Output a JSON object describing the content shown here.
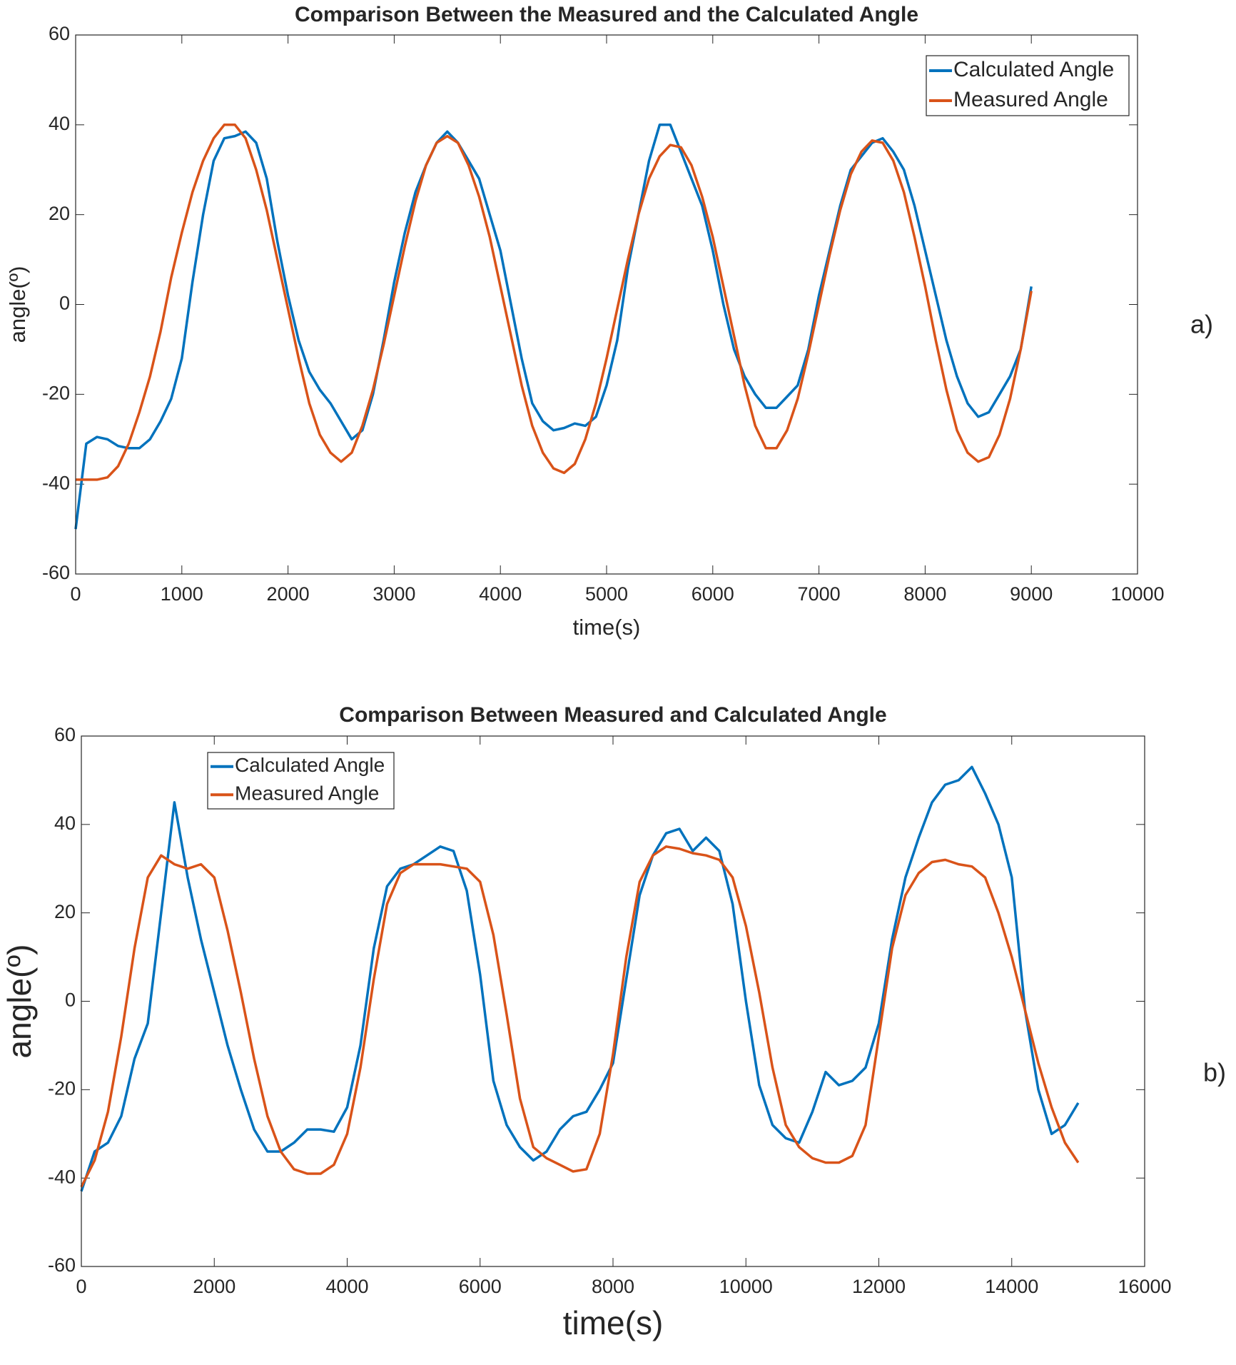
{
  "chart_data": [
    {
      "type": "line",
      "title": "Comparison Between the Measured and the Calculated Angle",
      "x_label": "time(s)",
      "y_label": "angle(º)",
      "annotation": "a)",
      "x": [
        0,
        100,
        200,
        300,
        400,
        500,
        600,
        700,
        800,
        900,
        1000,
        1100,
        1200,
        1300,
        1400,
        1500,
        1600,
        1700,
        1800,
        1900,
        2000,
        2100,
        2200,
        2300,
        2400,
        2500,
        2600,
        2700,
        2800,
        2900,
        3000,
        3100,
        3200,
        3300,
        3400,
        3500,
        3600,
        3700,
        3800,
        3900,
        4000,
        4100,
        4200,
        4300,
        4400,
        4500,
        4600,
        4700,
        4800,
        4900,
        5000,
        5100,
        5200,
        5300,
        5400,
        5500,
        5600,
        5700,
        5800,
        5900,
        6000,
        6100,
        6200,
        6300,
        6400,
        6500,
        6600,
        6700,
        6800,
        6900,
        7000,
        7100,
        7200,
        7300,
        7400,
        7500,
        7600,
        7700,
        7800,
        7900,
        8000,
        8100,
        8200,
        8300,
        8400,
        8500,
        8600,
        8700,
        8800,
        8900,
        9000
      ],
      "series": [
        {
          "name": "Calculated Angle",
          "color": "#0072bd",
          "values": [
            -50,
            -31,
            -29.5,
            -30,
            -31.5,
            -32,
            -32,
            -30,
            -26,
            -21,
            -12,
            5,
            20,
            32,
            37,
            37.5,
            38.5,
            36,
            28,
            14,
            2,
            -8,
            -15,
            -19,
            -22,
            -26,
            -30,
            -28,
            -20,
            -8,
            5,
            16,
            25,
            31,
            36,
            38.5,
            36,
            32,
            28,
            20,
            12,
            0,
            -12,
            -22,
            -26,
            -28,
            -27.5,
            -26.5,
            -27,
            -25,
            -18,
            -8,
            8,
            20,
            32,
            40,
            40,
            34,
            28,
            22,
            12,
            0,
            -10,
            -16,
            -20,
            -23,
            -23,
            -20.5,
            -18,
            -10,
            2,
            12,
            22,
            30,
            33,
            36,
            37,
            34,
            30,
            22,
            12,
            2,
            -8,
            -16,
            -22,
            -25,
            -24,
            -20,
            -16,
            -10,
            4
          ]
        },
        {
          "name": "Measured Angle",
          "color": "#d95319",
          "values": [
            -39,
            -39,
            -39,
            -38.5,
            -36,
            -31,
            -24,
            -16,
            -6,
            6,
            16,
            25,
            32,
            37,
            40,
            40,
            37,
            30,
            21,
            10,
            -1,
            -12,
            -22,
            -29,
            -33,
            -35,
            -33,
            -27,
            -19,
            -9,
            2,
            13,
            23,
            31,
            36,
            37.5,
            36,
            31,
            24,
            15,
            4,
            -7,
            -18,
            -27,
            -33,
            -36.5,
            -37.5,
            -35.5,
            -30,
            -22,
            -12,
            -1,
            10,
            20,
            28,
            33,
            35.5,
            35,
            31,
            24,
            15,
            4,
            -7,
            -18,
            -27,
            -32,
            -32,
            -28,
            -21,
            -11,
            0,
            11,
            21,
            29,
            34,
            36.5,
            36,
            32,
            25,
            15,
            4,
            -8,
            -19,
            -28,
            -33,
            -35,
            -34,
            -29,
            -21,
            -10,
            3
          ]
        }
      ],
      "xlim": [
        0,
        10000
      ],
      "xticks": [
        0,
        1000,
        2000,
        3000,
        4000,
        5000,
        6000,
        7000,
        8000,
        9000,
        10000
      ],
      "ylim": [
        -60,
        60
      ],
      "yticks": [
        -60,
        -40,
        -20,
        0,
        20,
        40,
        60
      ],
      "grid": false,
      "legend": "upper right"
    },
    {
      "type": "line",
      "title": "Comparison Between Measured and Calculated Angle",
      "x_label": "time(s)",
      "y_label": "angle(º)",
      "annotation": "b)",
      "x": [
        0,
        200,
        400,
        600,
        800,
        1000,
        1200,
        1400,
        1600,
        1800,
        2000,
        2200,
        2400,
        2600,
        2800,
        3000,
        3200,
        3400,
        3600,
        3800,
        4000,
        4200,
        4400,
        4600,
        4800,
        5000,
        5200,
        5400,
        5600,
        5800,
        6000,
        6200,
        6400,
        6600,
        6800,
        7000,
        7200,
        7400,
        7600,
        7800,
        8000,
        8200,
        8400,
        8600,
        8800,
        9000,
        9200,
        9400,
        9600,
        9800,
        10000,
        10200,
        10400,
        10600,
        10800,
        11000,
        11200,
        11400,
        11600,
        11800,
        12000,
        12200,
        12400,
        12600,
        12800,
        13000,
        13200,
        13400,
        13600,
        13800,
        14000,
        14200,
        14400,
        14600,
        14800,
        15000
      ],
      "series": [
        {
          "name": "Calculated Angle",
          "color": "#0072bd",
          "values": [
            -43,
            -34,
            -32,
            -26,
            -13,
            -5,
            20,
            45,
            28,
            14,
            2,
            -10,
            -20,
            -29,
            -34,
            -34,
            -32,
            -29,
            -29,
            -29.5,
            -24,
            -10,
            12,
            26,
            30,
            31,
            33,
            35,
            34,
            25,
            6,
            -18,
            -28,
            -33,
            -36,
            -34,
            -29,
            -26,
            -25,
            -20,
            -14,
            5,
            24,
            33,
            38,
            39,
            34,
            37,
            34,
            22,
            0,
            -19,
            -28,
            -31,
            -32,
            -25,
            -16,
            -19,
            -18,
            -15,
            -5,
            14,
            28,
            37,
            45,
            49,
            50,
            53,
            47,
            40,
            28,
            -2,
            -20,
            -30,
            -28,
            -23
          ]
        },
        {
          "name": "Measured Angle",
          "color": "#d95319",
          "values": [
            -42,
            -36,
            -25,
            -8,
            12,
            28,
            33,
            31,
            30,
            31,
            28,
            16,
            2,
            -13,
            -26,
            -34,
            -38,
            -39,
            -39,
            -37,
            -30,
            -15,
            5,
            22,
            29,
            31,
            31,
            31,
            30.5,
            30,
            27,
            15,
            -3,
            -22,
            -33,
            -35.5,
            -37,
            -38.5,
            -38,
            -30,
            -12,
            10,
            27,
            33,
            35,
            34.5,
            33.5,
            33,
            32,
            28,
            17,
            2,
            -15,
            -28,
            -33,
            -35.5,
            -36.5,
            -36.5,
            -35,
            -28,
            -8,
            12,
            24,
            29,
            31.5,
            32,
            31,
            30.5,
            28,
            20,
            10,
            -2,
            -14,
            -24,
            -32,
            -36.5
          ]
        }
      ],
      "xlim": [
        0,
        16000
      ],
      "xticks": [
        0,
        2000,
        4000,
        6000,
        8000,
        10000,
        12000,
        14000,
        16000
      ],
      "ylim": [
        -60,
        60
      ],
      "yticks": [
        -60,
        -40,
        -20,
        0,
        20,
        40,
        60
      ],
      "grid": false,
      "legend": "upper left"
    }
  ]
}
